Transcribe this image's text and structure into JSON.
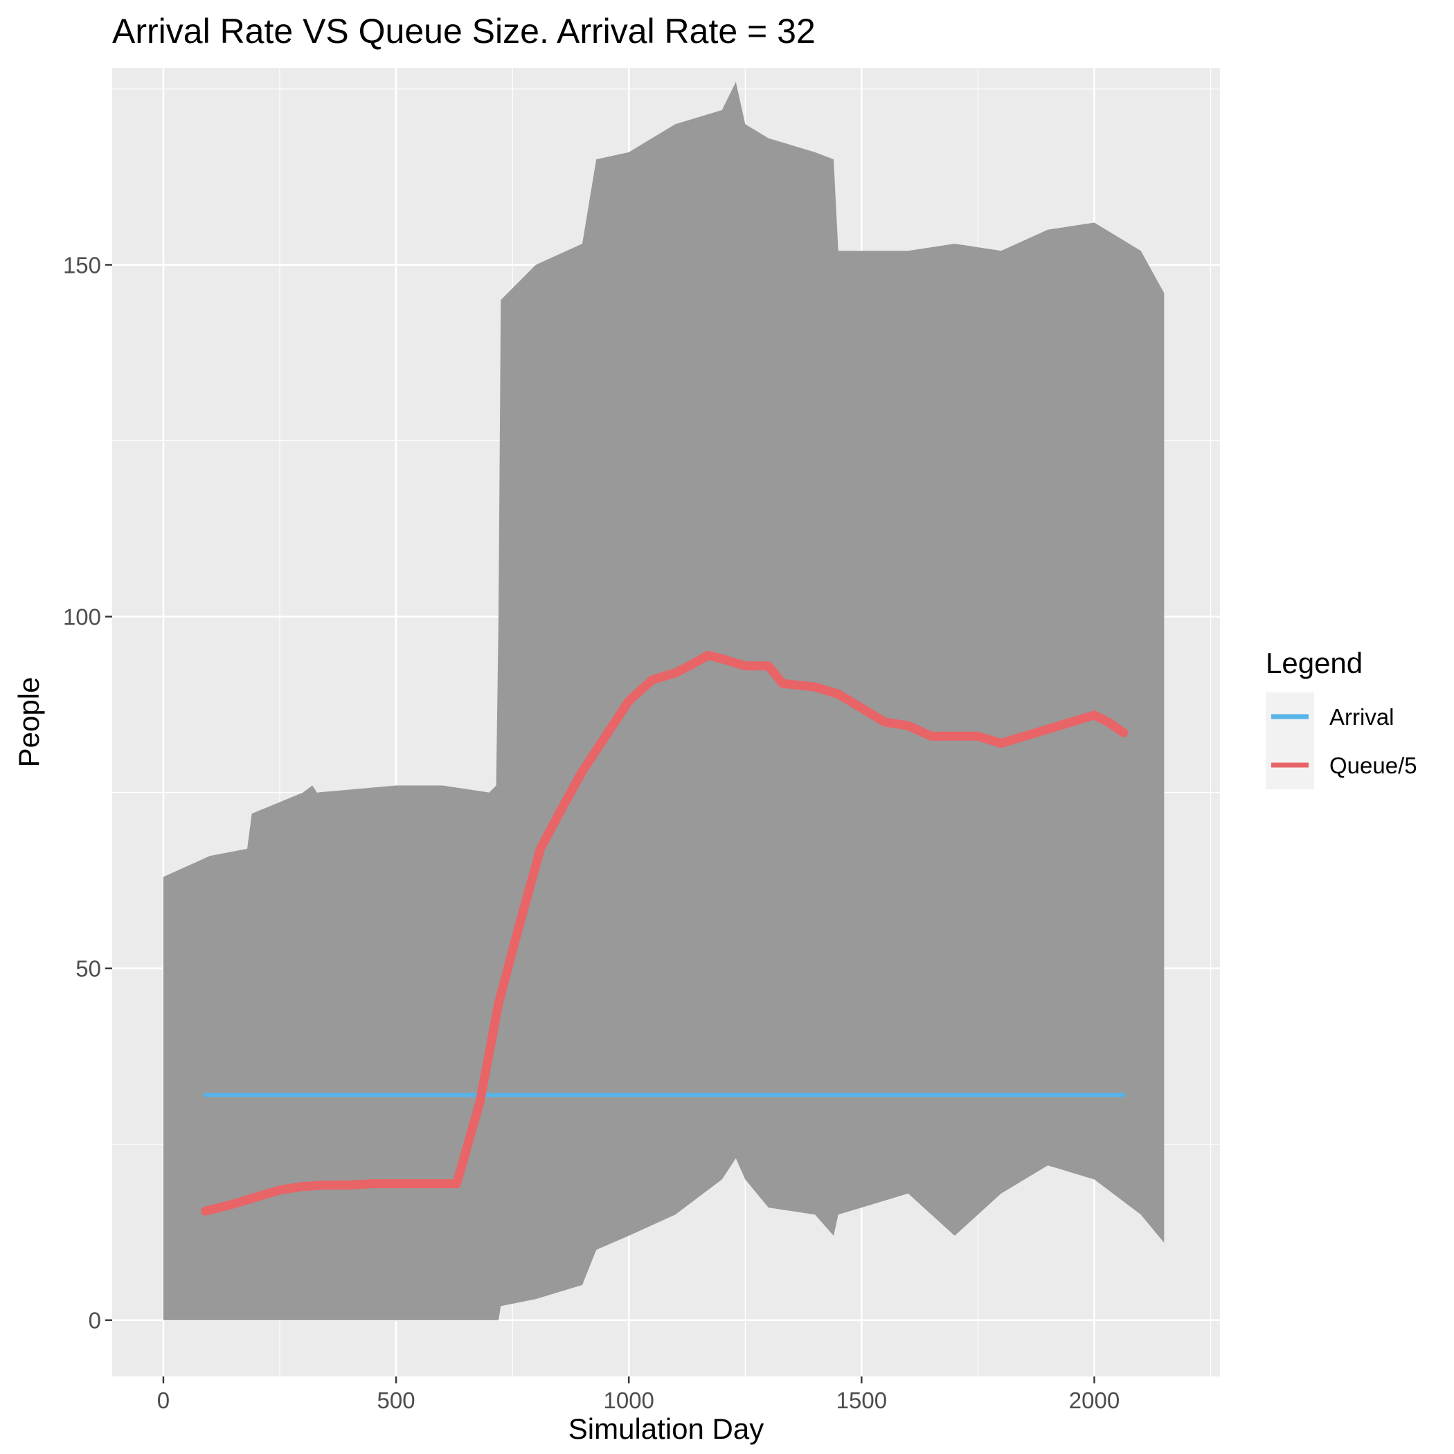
{
  "chart_data": {
    "type": "line",
    "title": "Arrival Rate VS Queue Size. Arrival Rate = 32",
    "xlabel": "Simulation Day",
    "ylabel": "People",
    "xlim": [
      -110,
      2270
    ],
    "ylim": [
      -8,
      178
    ],
    "x_ticks": [
      0,
      500,
      1000,
      1500,
      2000
    ],
    "x_tick_labels": [
      "0",
      "500",
      "1000",
      "1500",
      "2000"
    ],
    "y_ticks": [
      0,
      50,
      100,
      150
    ],
    "y_tick_labels": [
      "0",
      "50",
      "100",
      "150"
    ],
    "grid": true,
    "legend": {
      "title": "Legend",
      "position": "right",
      "entries": [
        {
          "label": "Arrival",
          "color": "#56B4E9"
        },
        {
          "label": "Queue/5",
          "color": "#E86466"
        }
      ]
    },
    "range_band": {
      "color": "#999999",
      "x": [
        0,
        100,
        180,
        190,
        300,
        320,
        330,
        500,
        600,
        700,
        715,
        720,
        725,
        800,
        900,
        930,
        1000,
        1100,
        1200,
        1230,
        1250,
        1300,
        1400,
        1440,
        1450,
        1600,
        1700,
        1800,
        1900,
        2000,
        2100,
        2150
      ],
      "low": [
        0,
        0,
        0,
        0,
        0,
        0,
        0,
        0,
        0,
        0,
        0,
        0,
        2,
        3,
        5,
        10,
        12,
        15,
        20,
        23,
        20,
        16,
        15,
        12,
        15,
        18,
        12,
        18,
        22,
        20,
        15,
        11
      ],
      "high": [
        63,
        66,
        67,
        72,
        75,
        76,
        75,
        76,
        76,
        75,
        76,
        100,
        145,
        150,
        153,
        165,
        166,
        170,
        172,
        176,
        170,
        168,
        166,
        165,
        152,
        152,
        153,
        152,
        155,
        156,
        152,
        146
      ]
    },
    "series": [
      {
        "name": "Arrival",
        "color": "#56B4E9",
        "x": [
          90,
          2063
        ],
        "y": [
          32,
          32
        ]
      },
      {
        "name": "Queue/5",
        "color": "#E86466",
        "x": [
          90,
          150,
          200,
          250,
          300,
          350,
          400,
          450,
          500,
          550,
          600,
          630,
          680,
          720,
          760,
          810,
          850,
          900,
          950,
          1000,
          1050,
          1100,
          1130,
          1170,
          1200,
          1250,
          1300,
          1330,
          1400,
          1450,
          1500,
          1550,
          1600,
          1650,
          1700,
          1750,
          1800,
          1850,
          1900,
          1950,
          2000,
          2030,
          2063
        ],
        "y": [
          15.5,
          16.5,
          17.5,
          18.5,
          19,
          19.2,
          19.2,
          19.4,
          19.4,
          19.4,
          19.4,
          19.4,
          31,
          45,
          55,
          67,
          72,
          78,
          83,
          88,
          91,
          92,
          93,
          94.5,
          94,
          93,
          93,
          90.5,
          90,
          89,
          87,
          85,
          84.5,
          83,
          83,
          83,
          82,
          83,
          84,
          85,
          86,
          85,
          83.5
        ]
      }
    ]
  }
}
